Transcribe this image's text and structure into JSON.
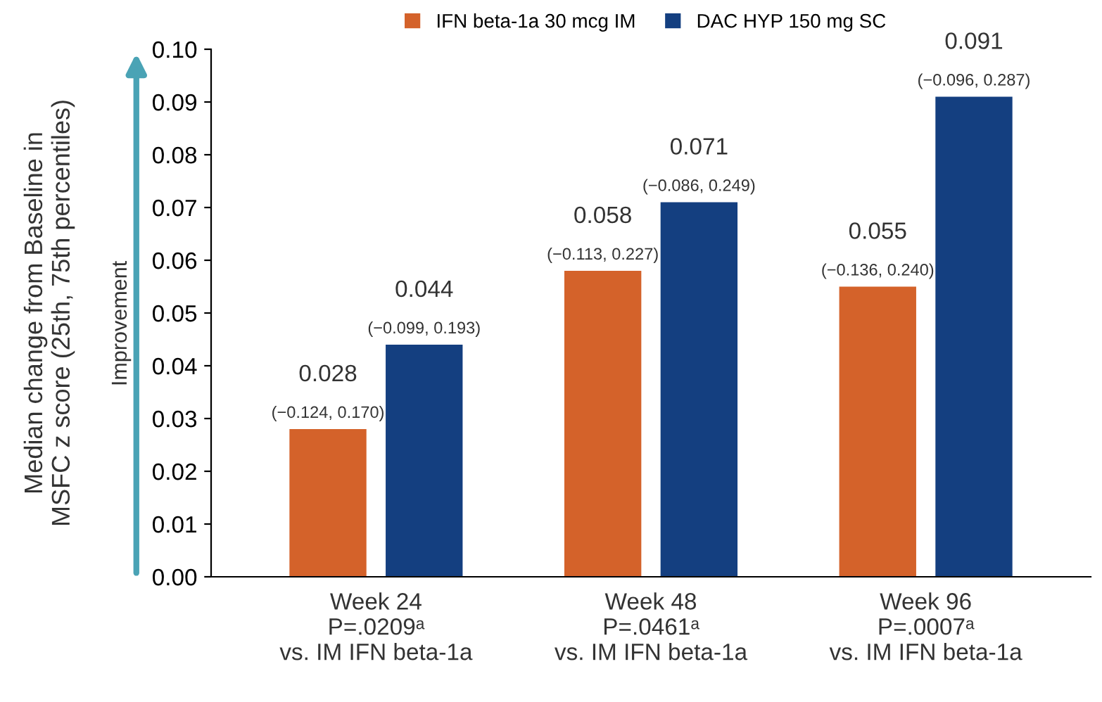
{
  "chart_data": {
    "type": "bar",
    "ylabel": "Median change from Baseline in\nMSFC z score (25th, 75th percentiles)",
    "categories": [
      "Week 24\nP=.0209ᵃ\nvs. IM IFN beta-1a",
      "Week 48\nP=.0461ᵃ\nvs. IM IFN beta-1a",
      "Week 96\nP=.0007ᵃ\nvs. IM IFN beta-1a"
    ],
    "series": [
      {
        "name": "IFN beta-1a 30 mcg IM",
        "color": "#d4622a",
        "values": [
          0.028,
          0.058,
          0.055
        ],
        "value_labels": [
          "0.028\n(−0.124, 0.170)",
          "0.058\n(−0.113, 0.227)",
          "0.055\n(−0.136, 0.240)"
        ]
      },
      {
        "name": "DAC HYP 150 mg SC",
        "color": "#143f80",
        "values": [
          0.044,
          0.071,
          0.091
        ],
        "value_labels": [
          "0.044\n(−0.099, 0.193)",
          "0.071\n(−0.086, 0.249)",
          "0.091\n(−0.096, 0.287)"
        ]
      }
    ],
    "ylim": [
      0,
      0.1
    ],
    "yticks": [
      {
        "value": 0,
        "label": "0.00"
      },
      {
        "value": 0.01,
        "label": "0.01"
      },
      {
        "value": 0.02,
        "label": "0.02"
      },
      {
        "value": 0.03,
        "label": "0.03"
      },
      {
        "value": 0.04,
        "label": "0.04"
      },
      {
        "value": 0.05,
        "label": "0.05"
      },
      {
        "value": 0.06,
        "label": "0.06"
      },
      {
        "value": 0.07,
        "label": "0.07"
      },
      {
        "value": 0.08,
        "label": "0.08"
      },
      {
        "value": 0.09,
        "label": "0.09"
      },
      {
        "value": 0.1,
        "label": "0.10"
      }
    ],
    "legend": "top",
    "grid": false,
    "annotations": [
      "Improvement"
    ]
  }
}
